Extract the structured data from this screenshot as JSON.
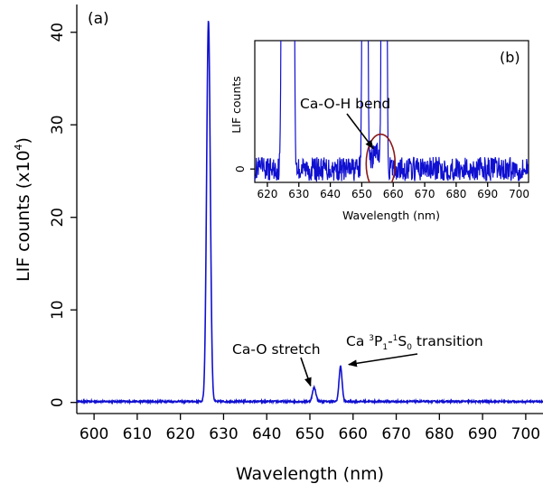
{
  "chart_data": [
    {
      "panel": "(a)",
      "type": "line",
      "xlabel": "Wavelength (nm)",
      "ylabel_prefix": "LIF counts (x10",
      "ylabel_exp": "4",
      "ylabel_suffix": ")",
      "xlim": [
        596,
        704
      ],
      "ylim": [
        -1.2,
        43
      ],
      "xticks": [
        600,
        610,
        620,
        630,
        640,
        650,
        660,
        670,
        680,
        690,
        700
      ],
      "yticks": [
        0,
        10,
        20,
        30,
        40
      ],
      "series": [
        {
          "color": "#1010d0",
          "baseline": 0.1,
          "peaks": [
            {
              "center": 626.5,
              "height": 41.2,
              "width": 0.42
            },
            {
              "center": 651.0,
              "height": 1.5,
              "width": 0.4
            },
            {
              "center": 657.1,
              "height": 3.8,
              "width": 0.35
            }
          ]
        }
      ],
      "annotations": [
        {
          "text": "Ca-O stretch",
          "x": 651.0,
          "y": 1.6
        },
        {
          "text_prefix": "Ca ",
          "sup1": "3",
          "mid1": "P",
          "sub1": "1",
          "mid2": "-",
          "sup2": "1",
          "mid3": "S",
          "sub2": "0",
          "text_suffix": " transition",
          "x": 657.1,
          "y": 3.9
        }
      ]
    },
    {
      "panel": "(b)",
      "type": "line",
      "xlabel": "Wavelength (nm)",
      "ylabel": "LIF counts",
      "xlim": [
        616,
        703
      ],
      "ylim": [
        -0.5,
        4.8
      ],
      "xticks": [
        620,
        630,
        640,
        650,
        660,
        670,
        680,
        690,
        700
      ],
      "yticks": [
        0
      ],
      "series": [
        {
          "color": "#1010d0",
          "baseline": 0.0,
          "peaks": [
            {
              "center": 626.5,
              "height": 4120,
              "width": 0.6
            },
            {
              "center": 651.0,
              "height": 150,
              "width": 0.4
            },
            {
              "center": 657.1,
              "height": 380,
              "width": 0.35
            },
            {
              "center": 654.8,
              "height": 0.65,
              "width": 1.6
            }
          ]
        }
      ],
      "annotations": [
        {
          "text": "Ca-O-H bend",
          "x": 654.8,
          "y": 0.7
        }
      ],
      "highlight": {
        "center_x": 656.0,
        "center_y": 0.2,
        "rx": 4.6,
        "ry": 1.1,
        "color": "#8b1a1a"
      }
    }
  ]
}
